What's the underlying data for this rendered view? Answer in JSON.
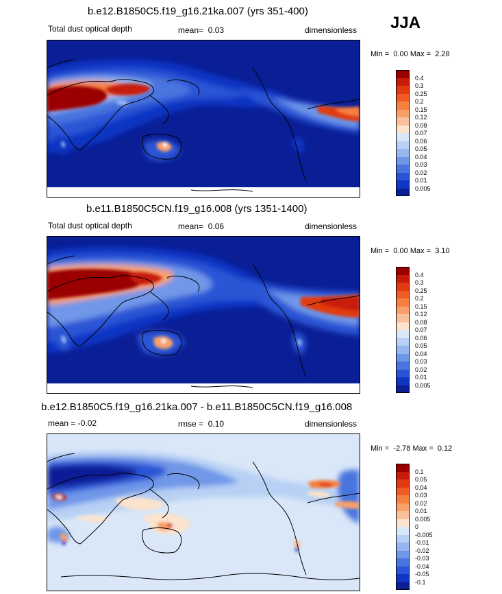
{
  "season": "JJA",
  "panels": [
    {
      "title": "b.e12.B1850C5.f19_g16.21ka.007 (yrs 351-400)",
      "variable": "Total dust optical depth",
      "stat_label": "mean=",
      "stat_value": "0.03",
      "units": "dimensionless",
      "min_label": "Min =",
      "min_value": "0.00",
      "max_label": "Max =",
      "max_value": "2.28"
    },
    {
      "title": "b.e11.B1850C5CN.f19_g16.008 (yrs 1351-1400)",
      "variable": "Total dust optical depth",
      "stat_label": "mean=",
      "stat_value": "0.06",
      "units": "dimensionless",
      "min_label": "Min =",
      "min_value": "0.00",
      "max_label": "Max =",
      "max_value": "3.10"
    },
    {
      "title": "b.e12.B1850C5.f19_g16.21ka.007 - b.e11.B1850C5CN.f19_g16.008",
      "variable": "mean =  -0.02",
      "stat_label": "rmse =",
      "stat_value": "0.10",
      "units": "dimensionless",
      "min_label": "Min =",
      "min_value": "-2.78",
      "max_label": "Max =",
      "max_value": "0.12"
    }
  ],
  "colorbars": {
    "abs": {
      "labels": [
        "0.4",
        "0.3",
        "0.25",
        "0.2",
        "0.15",
        "0.12",
        "0.08",
        "0.07",
        "0.06",
        "0.05",
        "0.04",
        "0.03",
        "0.02",
        "0.01",
        "0.005"
      ],
      "colors": [
        "#9b0000",
        "#c81a08",
        "#e23a10",
        "#f05a24",
        "#f6803f",
        "#f8a06a",
        "#f8c19b",
        "#fbe3cd",
        "#d9e7f8",
        "#b7d0f4",
        "#95b6ef",
        "#6f97e8",
        "#4a75df",
        "#2a54d5",
        "#1036c4",
        "#0a1e96"
      ]
    },
    "diff": {
      "labels": [
        "0.1",
        "0.05",
        "0.04",
        "0.03",
        "0.02",
        "0.01",
        "0.005",
        "0",
        "-0.005",
        "-0.01",
        "-0.02",
        "-0.03",
        "-0.04",
        "-0.05",
        "-0.1"
      ],
      "colors": [
        "#9b0000",
        "#c81a08",
        "#e23a10",
        "#f05a24",
        "#f6803f",
        "#f8a06a",
        "#f8c19b",
        "#fbe3cd",
        "#d9e7f8",
        "#b7d0f4",
        "#95b6ef",
        "#6f97e8",
        "#4a75df",
        "#2a54d5",
        "#1036c4",
        "#0a1e96"
      ]
    }
  }
}
